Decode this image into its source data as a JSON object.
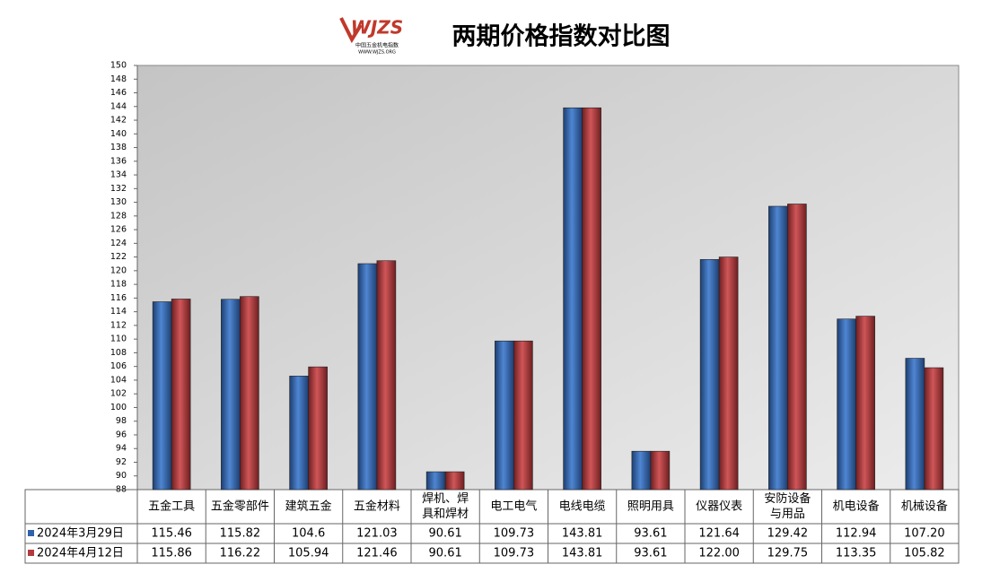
{
  "chart_data": {
    "type": "bar",
    "title": "两期价格指数对比图",
    "logo": {
      "mark": "WJZS",
      "name": "中国五金机电指数",
      "url": "WWW.WJZS.ORG"
    },
    "categories": [
      "五金工具",
      "五金零部件",
      "建筑五金",
      "五金材料",
      "焊机、焊具和焊材",
      "电工电气",
      "电线电缆",
      "照明用具",
      "仪器仪表",
      "安防设备与用品",
      "机电设备",
      "机械设备"
    ],
    "series": [
      {
        "name": "2024年3月29日",
        "color": "#2f62a8",
        "values": [
          115.46,
          115.82,
          104.6,
          121.03,
          90.61,
          109.73,
          143.81,
          93.61,
          121.64,
          129.42,
          112.94,
          107.2
        ],
        "value_labels": [
          "115.46",
          "115.82",
          "104.6",
          "121.03",
          "90.61",
          "109.73",
          "143.81",
          "93.61",
          "121.64",
          "129.42",
          "112.94",
          "107.20"
        ]
      },
      {
        "name": "2024年4月12日",
        "color": "#b23b3d",
        "values": [
          115.86,
          116.22,
          105.94,
          121.46,
          90.61,
          109.73,
          143.81,
          93.61,
          122,
          129.75,
          113.35,
          105.82
        ],
        "value_labels": [
          "115.86",
          "116.22",
          "105.94",
          "121.46",
          "90.61",
          "109.73",
          "143.81",
          "93.61",
          "122.00",
          "129.75",
          "113.35",
          "105.82"
        ]
      }
    ],
    "ylim": [
      88,
      150
    ],
    "yticks": [
      88,
      90,
      92,
      94,
      96,
      98,
      100,
      102,
      104,
      106,
      108,
      110,
      112,
      114,
      116,
      118,
      120,
      122,
      124,
      126,
      128,
      130,
      132,
      134,
      136,
      138,
      140,
      142,
      144,
      146,
      148,
      150
    ],
    "grid": false
  }
}
